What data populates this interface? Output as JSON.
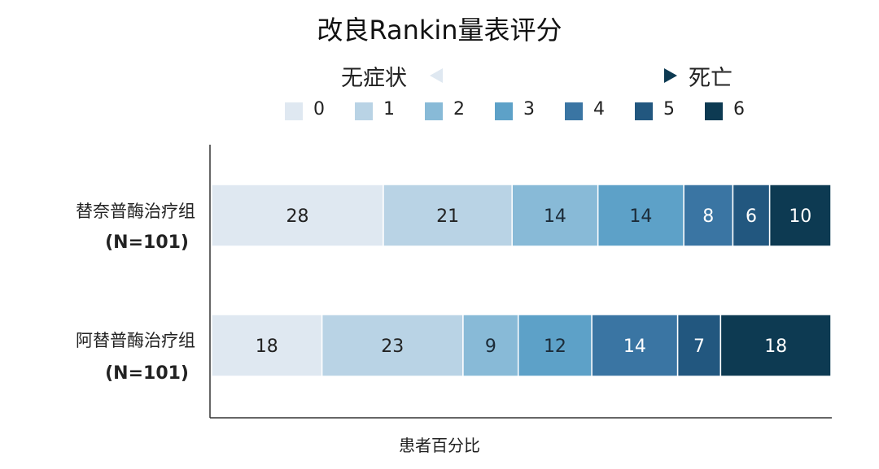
{
  "title": "改良Rankin量表评分",
  "scale": {
    "left_label": "无症状",
    "right_label": "死亡"
  },
  "colors": [
    "#dfe8f1",
    "#b9d3e5",
    "#88bad7",
    "#5da1c8",
    "#3a75a3",
    "#22577f",
    "#0d3a52"
  ],
  "chart_data": {
    "type": "bar",
    "orientation": "horizontal",
    "stacked": true,
    "title": "改良Rankin量表评分",
    "xlabel": "患者百分比",
    "ylabel": "",
    "legend": {
      "position": "top",
      "entries": [
        "0",
        "1",
        "2",
        "3",
        "4",
        "5",
        "6"
      ]
    },
    "categories": [
      {
        "name": "替奈普酶治疗组",
        "n": "(N=101)"
      },
      {
        "name": "阿替普酶治疗组",
        "n": "(N=101)"
      }
    ],
    "series": [
      {
        "name": "0",
        "values": [
          28,
          18
        ]
      },
      {
        "name": "1",
        "values": [
          21,
          23
        ]
      },
      {
        "name": "2",
        "values": [
          14,
          9
        ]
      },
      {
        "name": "3",
        "values": [
          14,
          12
        ]
      },
      {
        "name": "4",
        "values": [
          8,
          14
        ]
      },
      {
        "name": "5",
        "values": [
          6,
          7
        ]
      },
      {
        "name": "6",
        "values": [
          10,
          18
        ]
      }
    ],
    "xlim": [
      0,
      101
    ]
  }
}
